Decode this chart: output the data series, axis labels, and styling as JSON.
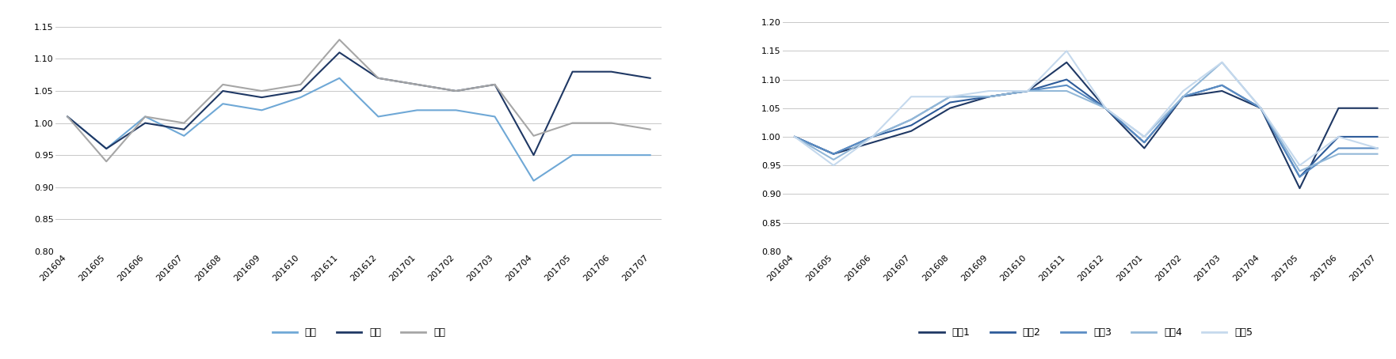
{
  "x_labels": [
    "201604",
    "201605",
    "201606",
    "201607",
    "201608",
    "201609",
    "201610",
    "201611",
    "201612",
    "201701",
    "201702",
    "201703",
    "201704",
    "201705",
    "201706",
    "201707"
  ],
  "chart1": {
    "空头": [
      1.01,
      0.96,
      1.01,
      0.98,
      1.03,
      1.02,
      1.04,
      1.07,
      1.01,
      1.02,
      1.02,
      1.01,
      0.91,
      0.95,
      0.95,
      0.95
    ],
    "中性": [
      1.01,
      0.96,
      1.0,
      0.99,
      1.05,
      1.04,
      1.05,
      1.11,
      1.07,
      1.06,
      1.05,
      1.06,
      0.95,
      1.08,
      1.08,
      1.07
    ],
    "多头": [
      1.01,
      0.94,
      1.01,
      1.0,
      1.06,
      1.05,
      1.06,
      1.13,
      1.07,
      1.06,
      1.05,
      1.06,
      0.98,
      1.0,
      1.0,
      0.99
    ],
    "colors": {
      "空头": "#6fa8d6",
      "中性": "#1f3864",
      "多头": "#a6a6a6"
    },
    "ylim": [
      0.8,
      1.175
    ],
    "yticks": [
      0.8,
      0.85,
      0.9,
      0.95,
      1.0,
      1.05,
      1.1,
      1.15
    ]
  },
  "chart2": {
    "系列1": [
      1.0,
      0.97,
      0.99,
      1.01,
      1.05,
      1.07,
      1.08,
      1.13,
      1.05,
      0.98,
      1.07,
      1.08,
      1.05,
      0.91,
      1.05,
      1.05
    ],
    "系列2": [
      1.0,
      0.97,
      1.0,
      1.02,
      1.06,
      1.07,
      1.08,
      1.1,
      1.05,
      0.99,
      1.07,
      1.09,
      1.05,
      0.93,
      1.0,
      1.0
    ],
    "系列3": [
      1.0,
      0.97,
      1.0,
      1.03,
      1.07,
      1.07,
      1.08,
      1.09,
      1.05,
      0.99,
      1.07,
      1.09,
      1.05,
      0.93,
      0.98,
      0.98
    ],
    "系列4": [
      1.0,
      0.96,
      1.0,
      1.03,
      1.07,
      1.07,
      1.08,
      1.08,
      1.05,
      1.0,
      1.07,
      1.13,
      1.05,
      0.94,
      0.97,
      0.97
    ],
    "系列5": [
      1.0,
      0.95,
      1.0,
      1.07,
      1.07,
      1.08,
      1.08,
      1.15,
      1.05,
      1.0,
      1.08,
      1.13,
      1.05,
      0.95,
      1.0,
      0.98
    ],
    "colors": {
      "系列1": "#1f3864",
      "系列2": "#2e5b99",
      "系列3": "#5b8dc4",
      "系列4": "#93b8d8",
      "系列5": "#c5d9ed"
    },
    "ylim": [
      0.8,
      1.22
    ],
    "yticks": [
      0.8,
      0.85,
      0.9,
      0.95,
      1.0,
      1.05,
      1.1,
      1.15,
      1.2
    ]
  },
  "legend1": [
    "空头",
    "中性",
    "多头"
  ],
  "legend2": [
    "系列1",
    "系列2",
    "系列3",
    "系列4",
    "系列5"
  ],
  "bg_color": "#ffffff",
  "grid_color": "#c8c8c8",
  "tick_fontsize": 8,
  "legend_fontsize": 9,
  "line_width": 1.5
}
